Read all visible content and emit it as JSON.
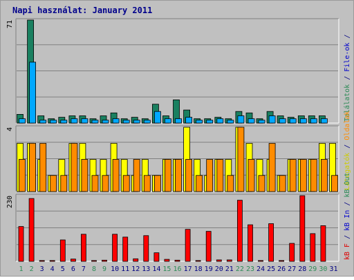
{
  "chart_data": [
    {
      "type": "bar",
      "title": "Napi használat: January 2011",
      "x": [
        "1",
        "2",
        "3",
        "4",
        "5",
        "6",
        "7",
        "8",
        "9",
        "10",
        "11",
        "12",
        "13",
        "14",
        "15",
        "16",
        "17",
        "18",
        "19",
        "20",
        "21",
        "22",
        "23",
        "24",
        "25",
        "26",
        "27",
        "28",
        "29",
        "30",
        "31"
      ],
      "weekend_days": [
        "1",
        "2",
        "8",
        "9",
        "15",
        "16",
        "22",
        "23",
        "29",
        "30"
      ],
      "ylabel_top": "71",
      "ylim": [
        0,
        71
      ],
      "right_label": [
        {
          "text": "Találatok",
          "color": "#2e8b57"
        },
        {
          "text": " / ",
          "color": "#000080"
        },
        {
          "text": "File-ok",
          "color": "#0000cc"
        },
        {
          "text": " / ",
          "color": "#000080"
        },
        {
          "text": "",
          "color": "#00bfff"
        }
      ],
      "series": [
        {
          "name": "Találatok",
          "color": "#1a8060",
          "values": [
            6,
            71,
            5,
            3,
            4,
            5,
            5,
            3,
            5,
            7,
            3,
            4,
            3,
            13,
            5,
            16,
            9,
            3,
            3,
            4,
            3,
            8,
            7,
            3,
            8,
            5,
            4,
            5,
            5,
            5,
            0
          ]
        },
        {
          "name": "File-ok",
          "color": "#00a8ff",
          "values": [
            3,
            42,
            2,
            2,
            2,
            3,
            3,
            2,
            2,
            3,
            2,
            2,
            2,
            8,
            3,
            3,
            4,
            2,
            2,
            3,
            2,
            5,
            3,
            2,
            5,
            3,
            3,
            3,
            3,
            3,
            0
          ]
        }
      ]
    },
    {
      "type": "bar",
      "ylabel_top": "4",
      "ylim": [
        0,
        4
      ],
      "right_label": [
        {
          "text": "Látogatók",
          "color": "#cccc00"
        },
        {
          "text": " / ",
          "color": "#000080"
        },
        {
          "text": "Oldalak",
          "color": "#ff8c00"
        }
      ],
      "series": [
        {
          "name": "Látogatók",
          "color": "#ffff00",
          "values": [
            3,
            3,
            2,
            1,
            2,
            3,
            3,
            2,
            2,
            3,
            2,
            1,
            2,
            1,
            2,
            2,
            4,
            2,
            1,
            2,
            2,
            4,
            3,
            2,
            2,
            1,
            2,
            2,
            2,
            3,
            3
          ]
        },
        {
          "name": "Oldalak",
          "color": "#ff8c00",
          "values": [
            2,
            3,
            3,
            1,
            1,
            3,
            2,
            1,
            1,
            2,
            1,
            2,
            1,
            1,
            2,
            2,
            2,
            1,
            2,
            2,
            1,
            4,
            2,
            1,
            3,
            1,
            2,
            2,
            2,
            2,
            1
          ]
        }
      ]
    },
    {
      "type": "bar",
      "ylabel_top": "230",
      "ylim": [
        0,
        230
      ],
      "right_label": [
        {
          "text": "kB F",
          "color": "#dd0000"
        },
        {
          "text": " / ",
          "color": "#000080"
        },
        {
          "text": "kB In",
          "color": "#0000cc"
        },
        {
          "text": " / ",
          "color": "#000080"
        },
        {
          "text": "kB Out",
          "color": "#2e8b57"
        }
      ],
      "series": [
        {
          "name": "kB F",
          "color": "#ff0000",
          "values": [
            122,
            220,
            3,
            3,
            75,
            8,
            95,
            3,
            4,
            95,
            85,
            9,
            90,
            30,
            7,
            4,
            112,
            3,
            105,
            5,
            5,
            214,
            128,
            3,
            132,
            3,
            63,
            230,
            97,
            125,
            0
          ]
        }
      ]
    }
  ]
}
